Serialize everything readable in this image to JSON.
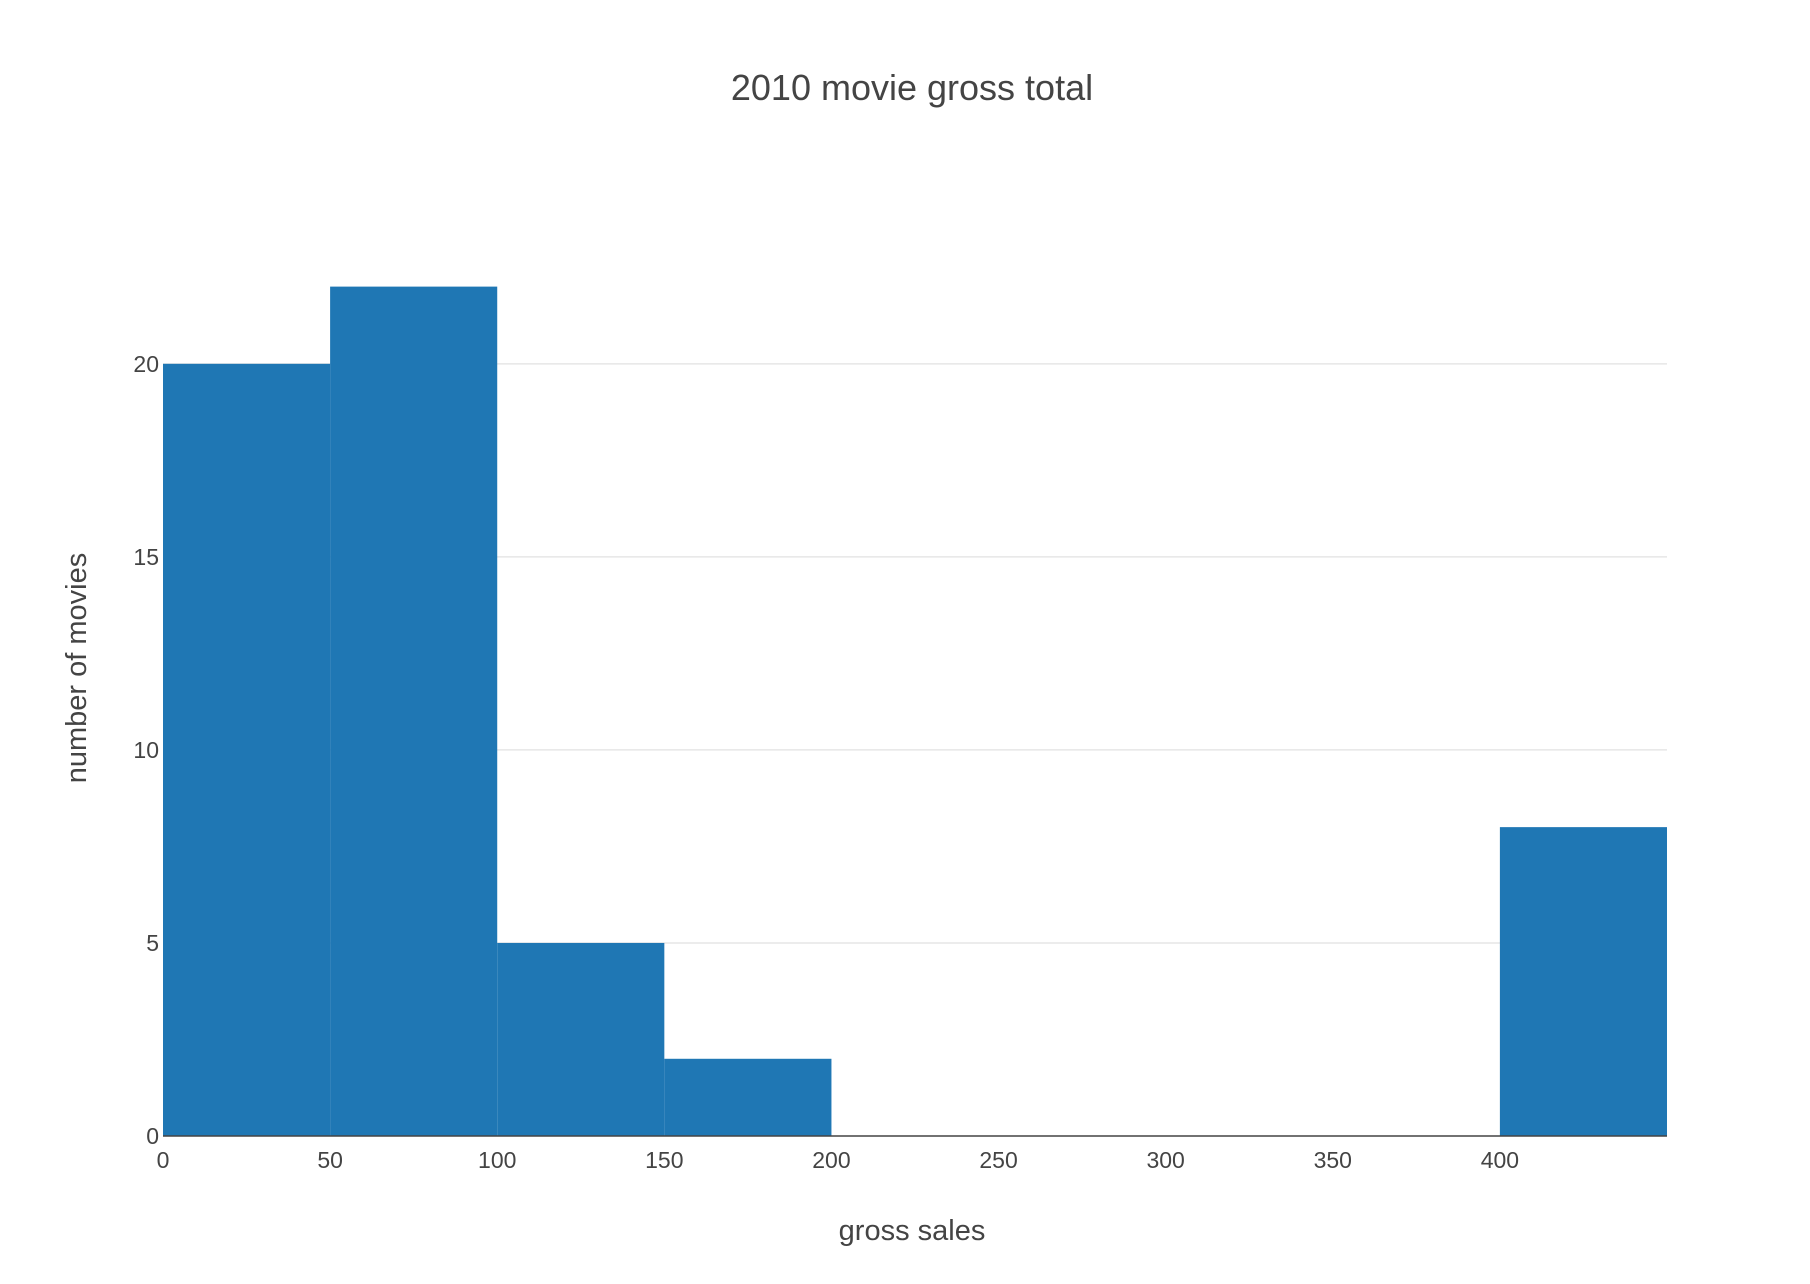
{
  "chart_data": {
    "type": "bar",
    "subtype": "histogram",
    "title": "2010 movie gross total",
    "xlabel": "gross sales",
    "ylabel": "number of movies",
    "xlim": [
      0,
      450
    ],
    "ylim": [
      0,
      23
    ],
    "xticks": [
      0,
      50,
      100,
      150,
      200,
      250,
      300,
      350,
      400
    ],
    "yticks": [
      0,
      5,
      10,
      15,
      20
    ],
    "grid": "horizontal",
    "legend": "none",
    "bar_color": "#1f77b4",
    "bins": [
      {
        "x0": 0,
        "x1": 50,
        "count": 20
      },
      {
        "x0": 50,
        "x1": 100,
        "count": 22
      },
      {
        "x0": 100,
        "x1": 150,
        "count": 5
      },
      {
        "x0": 150,
        "x1": 200,
        "count": 2
      },
      {
        "x0": 200,
        "x1": 250,
        "count": 0
      },
      {
        "x0": 250,
        "x1": 300,
        "count": 0
      },
      {
        "x0": 300,
        "x1": 350,
        "count": 0
      },
      {
        "x0": 350,
        "x1": 400,
        "count": 0
      },
      {
        "x0": 400,
        "x1": 450,
        "count": 8
      }
    ]
  }
}
